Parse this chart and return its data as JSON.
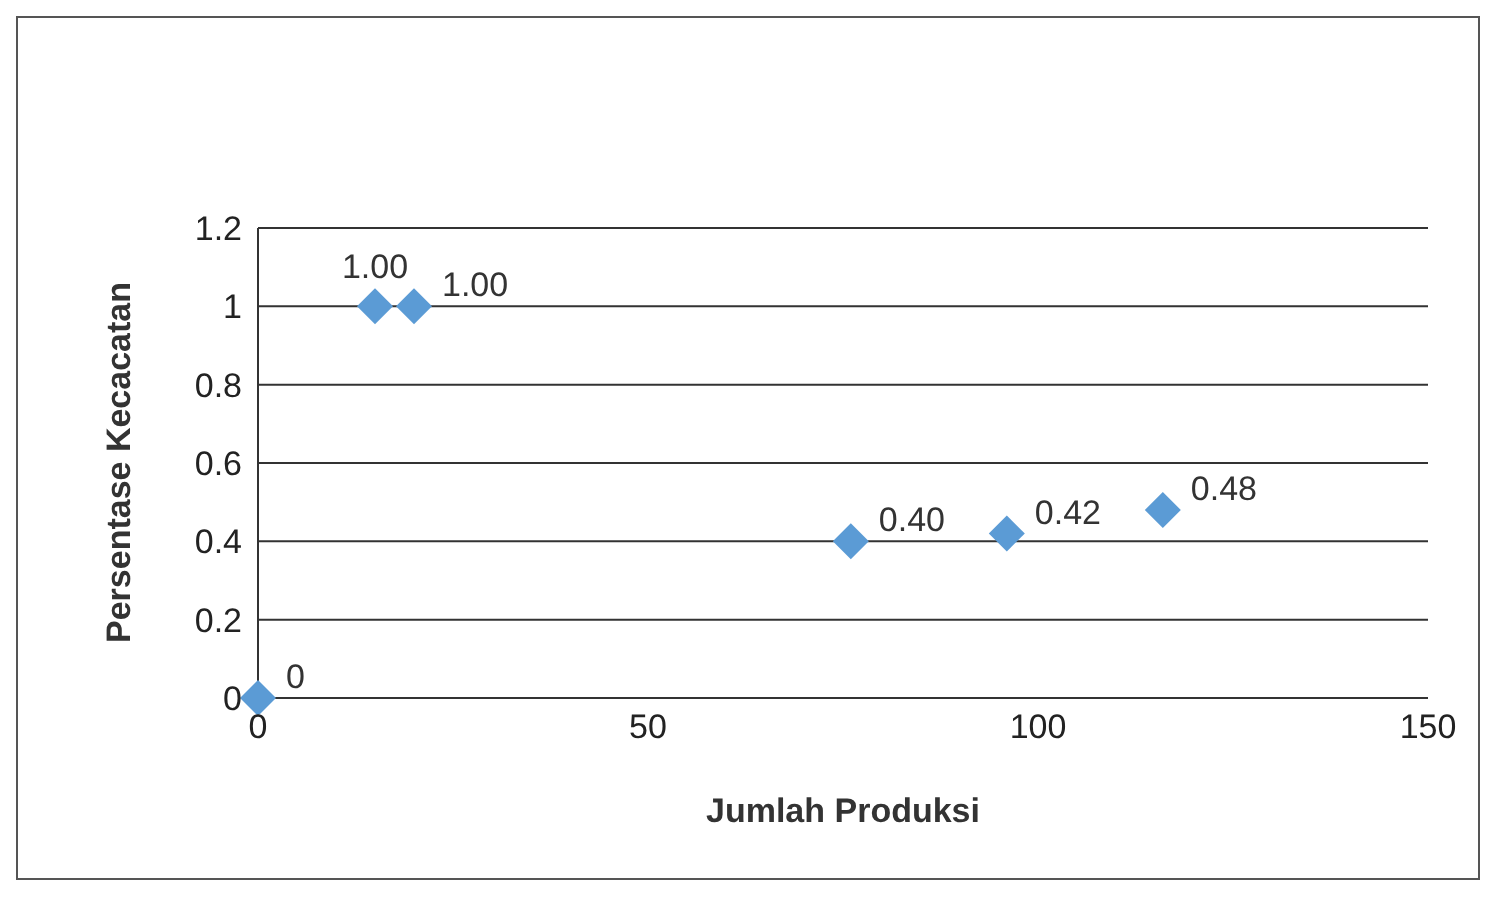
{
  "chart_data": {
    "type": "scatter",
    "xlabel": "Jumlah Produksi",
    "ylabel": "Persentase Kecacatan",
    "x": [
      0,
      15,
      20,
      76,
      96,
      116
    ],
    "values": [
      0,
      1,
      1,
      0.4,
      0.42,
      0.48
    ],
    "value_labels": [
      "0",
      "1.00",
      "1.00",
      "0.40",
      "0.42",
      "0.48"
    ],
    "color": "#5b9bd5",
    "marker": "diamond",
    "grid": "y",
    "xlim": [
      0,
      150
    ],
    "xticks": [
      0,
      50,
      100,
      150
    ],
    "ylim": [
      0,
      1.2
    ],
    "yticks": [
      0,
      0.2,
      0.4,
      0.6,
      0.8,
      1,
      1.2
    ],
    "legend": false
  }
}
